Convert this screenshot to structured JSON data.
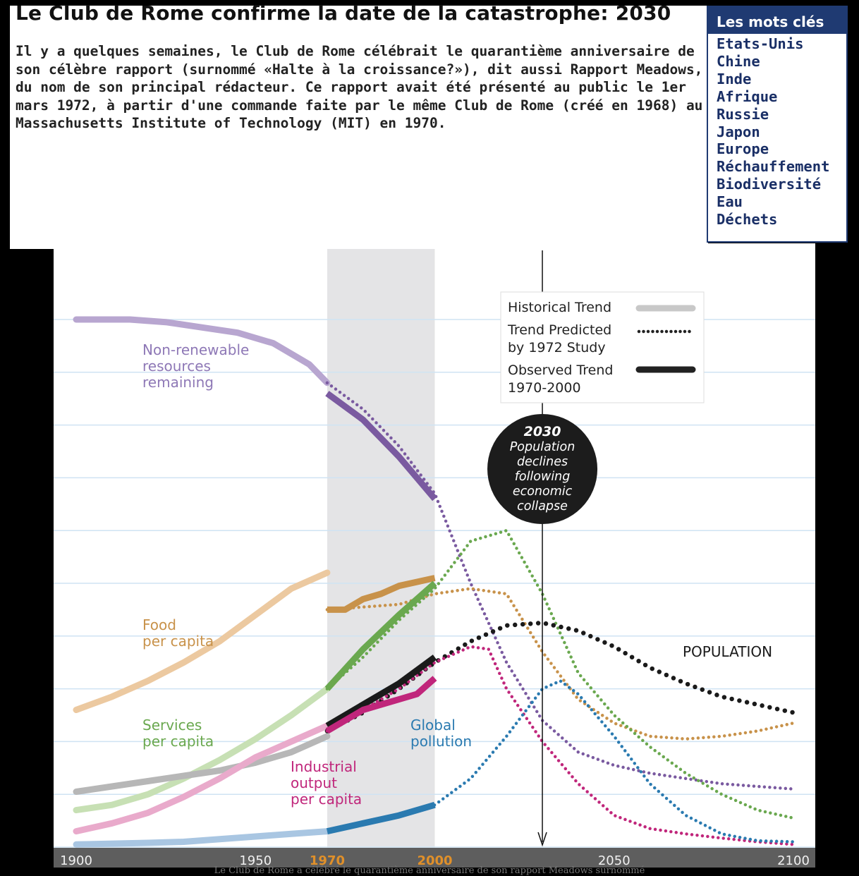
{
  "article": {
    "title": "Le Club de Rome confirme la date de la catastrophe: 2030",
    "intro": "Il y a quelques semaines, le Club de Rome célébrait le quarantième anniversaire de son célèbre rapport (surnommé «Halte à la croissance?»), dit aussi Rapport Meadows, du nom de son principal rédacteur. Ce rapport avait été présenté au public le 1er mars 1972, à partir d'une commande faite par le même Club de Rome (créé en 1968) au Massachusetts Institute of Technology (MIT) en 1970."
  },
  "keywords": {
    "title": "Les mots clés",
    "items": [
      "Etats-Unis",
      "Chine",
      "Inde",
      "Afrique",
      "Russie",
      "Japon",
      "Europe",
      "Réchauffement",
      "Biodiversité",
      "Eau",
      "Déchets"
    ],
    "color": "#1f3a72"
  },
  "caption": "Le Club de Rome a célébré le quarantième anniversaire de son rapport Meadows surnommé",
  "chart_data": {
    "type": "line",
    "title": "",
    "xlabel": "",
    "ylabel": "",
    "xlim": [
      1900,
      2100
    ],
    "ylim": [
      0,
      100
    ],
    "grid": true,
    "x_ticks": [
      {
        "label": "1900",
        "value": 1900,
        "highlight": false
      },
      {
        "label": "1950",
        "value": 1950,
        "highlight": false
      },
      {
        "label": "1970",
        "value": 1970,
        "highlight": true
      },
      {
        "label": "2000",
        "value": 2000,
        "highlight": true
      },
      {
        "label": "2050",
        "value": 2050,
        "highlight": false
      },
      {
        "label": "2100",
        "value": 2100,
        "highlight": false
      }
    ],
    "highlight_band": [
      1970,
      2000
    ],
    "marker_year": 2030,
    "legend": {
      "placement": "top-right",
      "items": [
        {
          "label": "Historical Trend",
          "style": "historical"
        },
        {
          "label": "Trend Predicted by 1972 Study",
          "style": "predicted"
        },
        {
          "label": "Observed Trend 1970-2000",
          "style": "observed"
        }
      ]
    },
    "annotation": {
      "year": "2030",
      "text": "Population declines following economic collapse"
    },
    "series": [
      {
        "name": "Non-renewable resources remaining",
        "color": "#7a5aa0",
        "light": "#b8a6d0",
        "historical": [
          [
            1900,
            100
          ],
          [
            1915,
            100
          ],
          [
            1925,
            99.5
          ],
          [
            1935,
            98.5
          ],
          [
            1945,
            97.5
          ],
          [
            1955,
            95.5
          ],
          [
            1965,
            91.5
          ],
          [
            1970,
            88
          ]
        ],
        "observed": [
          [
            1970,
            86
          ],
          [
            1980,
            81
          ],
          [
            1990,
            74
          ],
          [
            2000,
            66
          ]
        ],
        "predicted": [
          [
            1970,
            88
          ],
          [
            1980,
            83
          ],
          [
            1990,
            76
          ],
          [
            2000,
            67
          ],
          [
            2010,
            50
          ],
          [
            2020,
            35
          ],
          [
            2030,
            24
          ],
          [
            2040,
            18
          ],
          [
            2050,
            15.5
          ],
          [
            2060,
            14
          ],
          [
            2070,
            13
          ],
          [
            2080,
            12
          ],
          [
            2090,
            11.5
          ],
          [
            2100,
            11
          ]
        ]
      },
      {
        "name": "Food per capita",
        "color": "#c8924a",
        "light": "#ecc9a0",
        "historical": [
          [
            1900,
            26
          ],
          [
            1910,
            28.5
          ],
          [
            1920,
            31.5
          ],
          [
            1930,
            35
          ],
          [
            1940,
            39
          ],
          [
            1950,
            44
          ],
          [
            1960,
            49
          ],
          [
            1970,
            52
          ]
        ],
        "observed": [
          [
            1970,
            45
          ],
          [
            1975,
            45
          ],
          [
            1980,
            47
          ],
          [
            1985,
            48
          ],
          [
            1990,
            49.5
          ],
          [
            2000,
            51
          ]
        ],
        "predicted": [
          [
            1970,
            45
          ],
          [
            1990,
            46
          ],
          [
            2000,
            48
          ],
          [
            2010,
            49
          ],
          [
            2020,
            48
          ],
          [
            2030,
            37
          ],
          [
            2040,
            28
          ],
          [
            2050,
            23.5
          ],
          [
            2060,
            21
          ],
          [
            2070,
            20.5
          ],
          [
            2080,
            21
          ],
          [
            2090,
            22
          ],
          [
            2100,
            23.5
          ]
        ]
      },
      {
        "name": "Services per capita",
        "color": "#6aa84f",
        "light": "#c7e0b4",
        "historical": [
          [
            1900,
            7
          ],
          [
            1910,
            8
          ],
          [
            1920,
            10
          ],
          [
            1930,
            13
          ],
          [
            1940,
            16.5
          ],
          [
            1950,
            20.5
          ],
          [
            1960,
            25
          ],
          [
            1970,
            30
          ]
        ],
        "observed": [
          [
            1970,
            30
          ],
          [
            1980,
            37.5
          ],
          [
            1990,
            44
          ],
          [
            2000,
            50
          ]
        ],
        "predicted": [
          [
            1970,
            30
          ],
          [
            1980,
            36
          ],
          [
            1990,
            43
          ],
          [
            2000,
            49
          ],
          [
            2010,
            58
          ],
          [
            2020,
            60
          ],
          [
            2030,
            48
          ],
          [
            2040,
            33
          ],
          [
            2050,
            25
          ],
          [
            2060,
            19
          ],
          [
            2070,
            14
          ],
          [
            2080,
            10
          ],
          [
            2090,
            7
          ],
          [
            2100,
            5.5
          ]
        ]
      },
      {
        "name": "POPULATION",
        "color": "#1a1a1a",
        "light": "#b7b7b7",
        "historical": [
          [
            1900,
            10.5
          ],
          [
            1910,
            11.5
          ],
          [
            1920,
            12.5
          ],
          [
            1930,
            13.5
          ],
          [
            1940,
            14.5
          ],
          [
            1950,
            16
          ],
          [
            1960,
            18
          ],
          [
            1970,
            21
          ]
        ],
        "observed": [
          [
            1970,
            23
          ],
          [
            1980,
            27
          ],
          [
            1990,
            31
          ],
          [
            2000,
            36
          ]
        ],
        "predicted": [
          [
            1970,
            22
          ],
          [
            1980,
            25.5
          ],
          [
            1990,
            30
          ],
          [
            2000,
            35
          ],
          [
            2010,
            39
          ],
          [
            2020,
            42
          ],
          [
            2030,
            42.5
          ],
          [
            2040,
            41
          ],
          [
            2050,
            38
          ],
          [
            2060,
            34
          ],
          [
            2070,
            31
          ],
          [
            2080,
            28.5
          ],
          [
            2090,
            27
          ],
          [
            2100,
            25.5
          ]
        ]
      },
      {
        "name": "Industrial output per capita",
        "color": "#c0267b",
        "light": "#e9aacb",
        "historical": [
          [
            1900,
            3
          ],
          [
            1910,
            4.5
          ],
          [
            1920,
            6.5
          ],
          [
            1930,
            9.5
          ],
          [
            1940,
            13
          ],
          [
            1950,
            17
          ],
          [
            1960,
            20
          ],
          [
            1970,
            23
          ]
        ],
        "observed": [
          [
            1970,
            22
          ],
          [
            1980,
            26
          ],
          [
            1985,
            27
          ],
          [
            1990,
            28
          ],
          [
            1995,
            29
          ],
          [
            2000,
            32
          ]
        ],
        "predicted": [
          [
            1970,
            22
          ],
          [
            1980,
            26
          ],
          [
            1990,
            30
          ],
          [
            2000,
            35
          ],
          [
            2010,
            38
          ],
          [
            2015,
            37.5
          ],
          [
            2020,
            30
          ],
          [
            2030,
            20
          ],
          [
            2040,
            12
          ],
          [
            2050,
            6
          ],
          [
            2060,
            3.5
          ],
          [
            2070,
            2.5
          ],
          [
            2080,
            1.7
          ],
          [
            2090,
            1
          ],
          [
            2100,
            0.5
          ]
        ]
      },
      {
        "name": "Global pollution",
        "color": "#2a7ab0",
        "light": "#a9c6e2",
        "historical": [
          [
            1900,
            0.5
          ],
          [
            1920,
            0.8
          ],
          [
            1930,
            1
          ],
          [
            1940,
            1.5
          ],
          [
            1950,
            2
          ],
          [
            1960,
            2.5
          ],
          [
            1970,
            3
          ]
        ],
        "observed": [
          [
            1970,
            3
          ],
          [
            1980,
            4.5
          ],
          [
            1990,
            6
          ],
          [
            2000,
            8
          ]
        ],
        "predicted": [
          [
            1990,
            6
          ],
          [
            2000,
            8
          ],
          [
            2010,
            13
          ],
          [
            2020,
            21
          ],
          [
            2030,
            30
          ],
          [
            2035,
            31.5
          ],
          [
            2040,
            29
          ],
          [
            2050,
            21
          ],
          [
            2060,
            12
          ],
          [
            2070,
            6
          ],
          [
            2080,
            2.5
          ],
          [
            2090,
            1.2
          ],
          [
            2100,
            1
          ]
        ]
      }
    ],
    "series_labels": [
      {
        "series": "Non-renewable resources remaining",
        "lines": [
          "Non-renewable",
          "resources",
          "remaining"
        ]
      },
      {
        "series": "Food per capita",
        "lines": [
          "Food",
          "per capita"
        ]
      },
      {
        "series": "Services per capita",
        "lines": [
          "Services",
          "per capita"
        ]
      },
      {
        "series": "Industrial output per capita",
        "lines": [
          "Industrial",
          "output",
          "per capita"
        ]
      },
      {
        "series": "Global pollution",
        "lines": [
          "Global",
          "pollution"
        ]
      },
      {
        "series": "POPULATION",
        "lines": [
          "POPULATION"
        ]
      }
    ]
  }
}
